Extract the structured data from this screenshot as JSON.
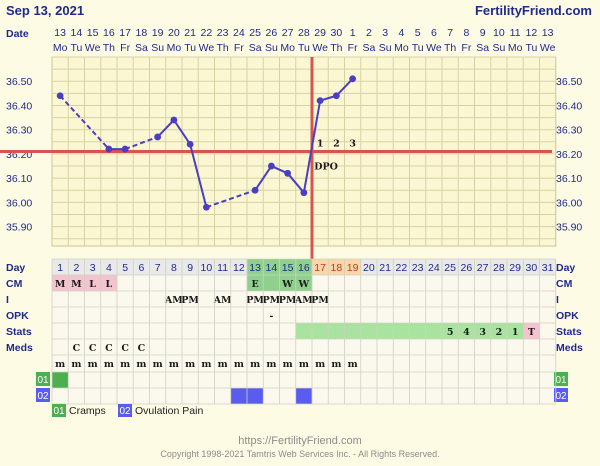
{
  "header": {
    "date_label": "Sep 13, 2021",
    "site": "FertilityFriend.com",
    "row_label": "Date"
  },
  "chart_data": {
    "type": "line",
    "ylim": [
      35.82,
      36.6
    ],
    "y_ticks": [
      "36.50",
      "36.40",
      "36.30",
      "36.20",
      "36.10",
      "36.00",
      "35.90"
    ],
    "dates": [
      "13",
      "14",
      "15",
      "16",
      "17",
      "18",
      "19",
      "20",
      "21",
      "22",
      "23",
      "24",
      "25",
      "26",
      "27",
      "28",
      "29",
      "30",
      "1",
      "2",
      "3",
      "4",
      "5",
      "6",
      "7",
      "8",
      "9",
      "10",
      "11",
      "12",
      "13"
    ],
    "weekdays": [
      "Mo",
      "Tu",
      "We",
      "Th",
      "Fr",
      "Sa",
      "Su",
      "Mo",
      "Tu",
      "We",
      "Th",
      "Fr",
      "Sa",
      "Su",
      "Mo",
      "Tu",
      "We",
      "Th",
      "Fr",
      "Sa",
      "Su",
      "Mo",
      "Tu",
      "We",
      "Th",
      "Fr",
      "Sa",
      "Su",
      "Mo",
      "Tu",
      "We"
    ],
    "temps": [
      36.44,
      null,
      null,
      36.22,
      36.22,
      null,
      36.27,
      36.34,
      36.24,
      35.98,
      null,
      null,
      36.05,
      36.15,
      36.12,
      36.04,
      36.42,
      36.44,
      36.51,
      null,
      null,
      null,
      null,
      null,
      null,
      null,
      null,
      null,
      null,
      null,
      null
    ],
    "coverline": 36.21,
    "ovulation_day": 16,
    "dpo_markers": [
      {
        "day": 17,
        "label": "1"
      },
      {
        "day": 18,
        "label": "2"
      },
      {
        "day": 19,
        "label": "3"
      }
    ],
    "dpo_label": "DPO",
    "rows": {
      "day_label": "Day",
      "days": [
        "1",
        "2",
        "3",
        "4",
        "5",
        "6",
        "7",
        "8",
        "9",
        "10",
        "11",
        "12",
        "13",
        "14",
        "15",
        "16",
        "17",
        "18",
        "19",
        "20",
        "21",
        "22",
        "23",
        "24",
        "25",
        "26",
        "27",
        "28",
        "29",
        "30",
        "31"
      ],
      "cm_label": "CM",
      "cm": [
        "M",
        "M",
        "L",
        "L",
        "",
        "",
        "",
        "",
        "",
        "",
        "",
        "",
        "E",
        "",
        "W",
        "W",
        "",
        "",
        "",
        "",
        "",
        "",
        "",
        "",
        "",
        "",
        "",
        "",
        "",
        "",
        ""
      ],
      "i_label": "I",
      "i": [
        "",
        "",
        "",
        "",
        "",
        "",
        "",
        "AM",
        "PM",
        "",
        "AM",
        "",
        "PM",
        "PM",
        "PM",
        "AM",
        "PM",
        "",
        "",
        "",
        "",
        "",
        "",
        "",
        "",
        "",
        "",
        "",
        "",
        "",
        ""
      ],
      "opk_label": "OPK",
      "opk": [
        "",
        "",
        "",
        "",
        "",
        "",
        "",
        "",
        "",
        "",
        "",
        "",
        "",
        "-",
        "",
        "",
        "",
        "",
        "",
        "",
        "",
        "",
        "",
        "",
        "",
        "",
        "",
        "",
        "",
        "",
        ""
      ],
      "stats_label": "Stats",
      "stats": [
        "",
        "",
        "",
        "",
        "",
        "",
        "",
        "",
        "",
        "",
        "",
        "",
        "",
        "",
        "",
        "",
        "",
        "",
        "",
        "",
        "",
        "",
        "",
        "",
        "5",
        "4",
        "3",
        "2",
        "1",
        "T",
        ""
      ],
      "meds_label": "Meds",
      "meds": [
        "",
        "C",
        "C",
        "C",
        "C",
        "C",
        "",
        "",
        "",
        "",
        "",
        "",
        "",
        "",
        "",
        "",
        "",
        "",
        "",
        "",
        "",
        "",
        "",
        "",
        "",
        "",
        "",
        "",
        "",
        "",
        ""
      ],
      "m_row": [
        "m",
        "m",
        "m",
        "m",
        "m",
        "m",
        "m",
        "m",
        "m",
        "m",
        "m",
        "m",
        "m",
        "m",
        "m",
        "m",
        "m",
        "m",
        "m",
        "",
        "",
        "",
        "",
        "",
        "",
        "",
        "",
        "",
        "",
        "",
        ""
      ],
      "sym1_label": "01",
      "sym2_label": "02",
      "sym1_days": [
        1
      ],
      "sym2_days": [
        12,
        13,
        16
      ]
    },
    "colors": {
      "line": "#4a3fc0",
      "coverline": "#d9534f",
      "fertile": "#8fd08f",
      "menses": "#f5c2cf",
      "post_ov": "#f8d8a8",
      "stats_green": "#a8e4a0",
      "sym1": "#4caf50",
      "sym2": "#5a5cf0"
    }
  },
  "legend": [
    {
      "code": "01",
      "label": "Cramps"
    },
    {
      "code": "02",
      "label": "Ovulation Pain"
    }
  ],
  "footer": {
    "url": "https://FertilityFriend.com",
    "copyright": "Copyright 1998-2021 Tamtris Web Services Inc. - All Rights Reserved."
  }
}
